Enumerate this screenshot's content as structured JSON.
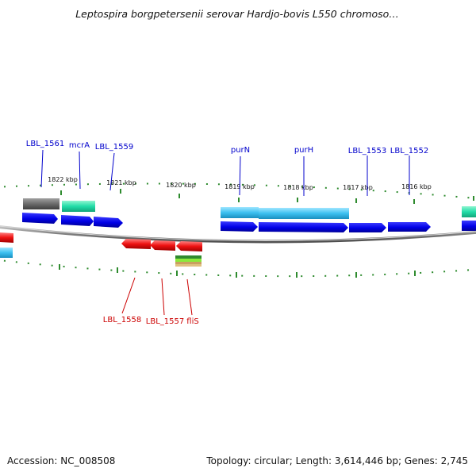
{
  "title": "Leptospira borgpetersenii serovar Hardjo-bovis L550 chromoso…",
  "footer": {
    "accession": "Accession: NC_008508",
    "summary": "Topology: circular; Length: 3,614,446 bp; Genes: 2,745"
  },
  "colors": {
    "background": "#ffffff",
    "backbone": "#8a8a8a",
    "tick": "#2e8b2e",
    "forward_label": "#0000cc",
    "reverse_label": "#cc0000",
    "cds_forward": "#0000ee",
    "gene_forward": "#33bbee",
    "rrna_like": "#22ddaa",
    "pseudo": "#6b6b6b",
    "cds_reverse": "#ee1111",
    "misc_feature": "#77dd33"
  },
  "scale_labels": [
    "1822 kbp",
    "1821 kbp",
    "1820 kbp",
    "1819 kbp",
    "1818 kbp",
    "1817 kbp",
    "1816 kbp"
  ],
  "forward_labels": [
    "LBL_1561",
    "mcrA",
    "LBL_1559",
    "purN",
    "purH",
    "LBL_1553",
    "LBL_1552"
  ],
  "reverse_labels": [
    "LBL_1558",
    "LBL_1557",
    "fliS"
  ]
}
